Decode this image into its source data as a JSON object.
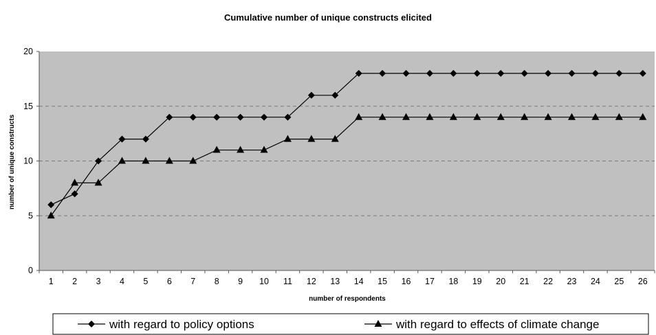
{
  "chart_data": {
    "type": "line",
    "title": "Cumulative number of unique constructs elicited",
    "xlabel": "number of respondents",
    "ylabel": "number of unique constructs",
    "x": [
      1,
      2,
      3,
      4,
      5,
      6,
      7,
      8,
      9,
      10,
      11,
      12,
      13,
      14,
      15,
      16,
      17,
      18,
      19,
      20,
      21,
      22,
      23,
      24,
      25,
      26
    ],
    "ylim": [
      0,
      20
    ],
    "yticks": [
      0,
      5,
      10,
      15,
      20
    ],
    "grid": "horizontal dashed",
    "legend_position": "bottom",
    "series": [
      {
        "name": "with regard to policy options",
        "marker": "diamond",
        "values": [
          6,
          7,
          10,
          12,
          12,
          14,
          14,
          14,
          14,
          14,
          14,
          16,
          16,
          18,
          18,
          18,
          18,
          18,
          18,
          18,
          18,
          18,
          18,
          18,
          18,
          18
        ]
      },
      {
        "name": "with regard to effects of climate change",
        "marker": "triangle",
        "values": [
          5,
          8,
          8,
          10,
          10,
          10,
          10,
          11,
          11,
          11,
          12,
          12,
          12,
          14,
          14,
          14,
          14,
          14,
          14,
          14,
          14,
          14,
          14,
          14,
          14,
          14
        ]
      }
    ],
    "colors": {
      "plot_background": "#c0c0c0",
      "series_line": "#000000",
      "gridline": "#7a7a7a"
    }
  }
}
